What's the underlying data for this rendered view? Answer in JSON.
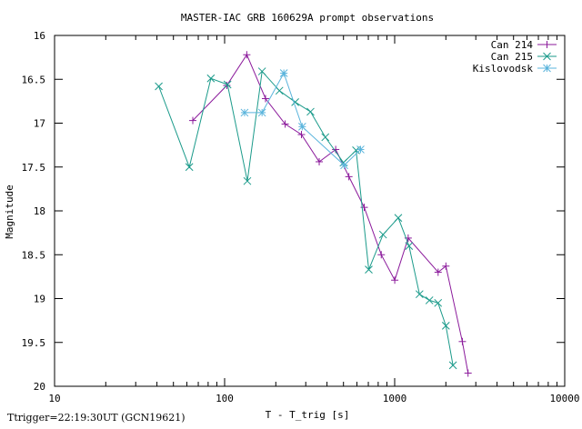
{
  "chart_data": {
    "type": "line",
    "title": "MASTER-IAC GRB 160629A prompt observations",
    "xlabel": "T - T_trig  [s]",
    "ylabel": "Magnitude",
    "x_scale": "log",
    "xlim": [
      10,
      10000
    ],
    "ylim": [
      20,
      16
    ],
    "y_inverted": true,
    "x_ticks": [
      "10",
      "100",
      "1000",
      "10000"
    ],
    "y_ticks": [
      "16",
      "16.5",
      "17",
      "17.5",
      "18",
      "18.5",
      "19",
      "19.5",
      "20"
    ],
    "grid": false,
    "legend_position": "top-right",
    "series": [
      {
        "name": "Can 214",
        "color": "#8b1a9b",
        "marker": "plus",
        "points": [
          [
            65,
            16.97
          ],
          [
            103,
            16.57
          ],
          [
            135,
            16.22
          ],
          [
            174,
            16.72
          ],
          [
            227,
            17.01
          ],
          [
            283,
            17.13
          ],
          [
            360,
            17.44
          ],
          [
            450,
            17.3
          ],
          [
            538,
            17.61
          ],
          [
            662,
            17.96
          ],
          [
            834,
            18.5
          ],
          [
            1001,
            18.79
          ],
          [
            1201,
            18.31
          ],
          [
            1801,
            18.7
          ],
          [
            2001,
            18.63
          ],
          [
            2501,
            19.49
          ],
          [
            2701,
            19.85
          ]
        ]
      },
      {
        "name": "Can 215",
        "color": "#1a9a8a",
        "marker": "x",
        "points": [
          [
            41,
            16.58
          ],
          [
            62,
            17.5
          ],
          [
            83,
            16.49
          ],
          [
            104,
            16.56
          ],
          [
            136,
            17.66
          ],
          [
            166,
            16.41
          ],
          [
            210,
            16.63
          ],
          [
            260,
            16.76
          ],
          [
            320,
            16.87
          ],
          [
            391,
            17.16
          ],
          [
            500,
            17.45
          ],
          [
            593,
            17.31
          ],
          [
            704,
            18.67
          ],
          [
            854,
            18.27
          ],
          [
            1050,
            18.08
          ],
          [
            1215,
            18.4
          ],
          [
            1400,
            18.95
          ],
          [
            1600,
            19.02
          ],
          [
            1800,
            19.05
          ],
          [
            2000,
            19.31
          ],
          [
            2202,
            19.76
          ]
        ]
      },
      {
        "name": "Kislovodsk",
        "color": "#5ab4dc",
        "marker": "star",
        "points": [
          [
            131,
            16.88
          ],
          [
            166,
            16.88
          ],
          [
            223,
            16.43
          ],
          [
            286,
            17.04
          ],
          [
            505,
            17.48
          ],
          [
            630,
            17.3
          ]
        ]
      }
    ]
  },
  "footer": {
    "trigger_note": "Ttrigger=22:19:30UT (GCN19621)"
  }
}
